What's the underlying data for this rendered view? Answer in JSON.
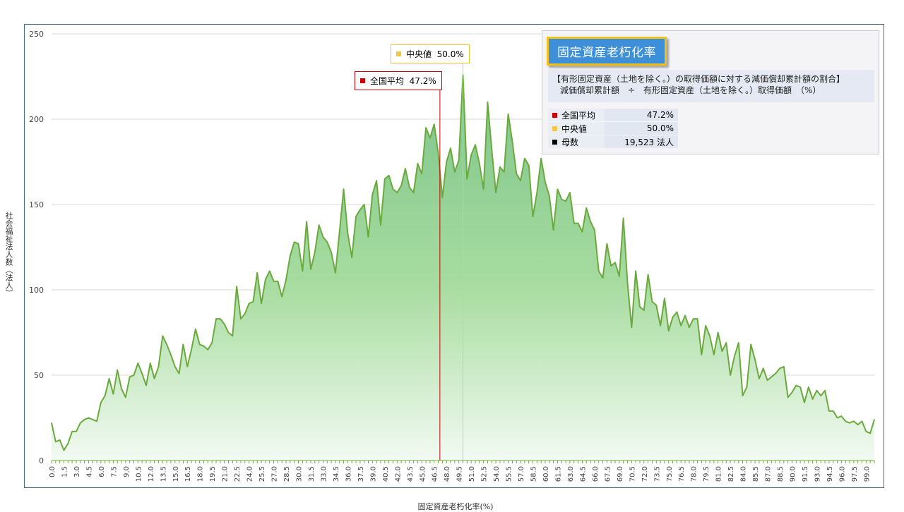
{
  "chart_data": {
    "type": "area",
    "title": "固定資産老朽化率",
    "xlabel": "固定資産老朽化率(%)",
    "ylabel": "社会福祉法人数（法人）",
    "ylim": [
      0,
      250
    ],
    "yticks": [
      0,
      50,
      100,
      150,
      200,
      250
    ],
    "xlim": [
      0,
      100
    ],
    "x_step": 0.5,
    "x_tick_labels": [
      "0.0",
      "1.5",
      "3.0",
      "4.5",
      "6.0",
      "7.5",
      "9.0",
      "10.5",
      "12.0",
      "13.5",
      "15.0",
      "16.5",
      "18.0",
      "19.5",
      "21.0",
      "22.5",
      "24.0",
      "25.5",
      "27.0",
      "28.5",
      "30.0",
      "31.5",
      "33.0",
      "34.5",
      "36.0",
      "37.5",
      "39.0",
      "40.5",
      "42.0",
      "43.5",
      "45.0",
      "46.5",
      "48.0",
      "49.5",
      "51.0",
      "52.5",
      "54.0",
      "55.5",
      "57.0",
      "58.5",
      "60.0",
      "61.5",
      "63.0",
      "64.5",
      "66.0",
      "67.5",
      "69.0",
      "70.5",
      "72.0",
      "73.5",
      "75.0",
      "76.5",
      "78.0",
      "79.5",
      "81.0",
      "82.5",
      "84.0",
      "85.5",
      "87.0",
      "88.5",
      "90.0",
      "91.5",
      "93.0",
      "94.5",
      "96.0",
      "97.5",
      "99.0"
    ],
    "grid": true,
    "series": [
      {
        "values": [
          22,
          11,
          12,
          6,
          10,
          17,
          17,
          22,
          24,
          25,
          24,
          23,
          34,
          38,
          48,
          39,
          53,
          42,
          37,
          49,
          50,
          57,
          51,
          44,
          57,
          48,
          55,
          73,
          68,
          62,
          55,
          51,
          68,
          55,
          65,
          77,
          68,
          67,
          65,
          69,
          83,
          83,
          80,
          75,
          73,
          102,
          83,
          86,
          92,
          93,
          110,
          92,
          106,
          111,
          105,
          105,
          96,
          106,
          120,
          128,
          127,
          111,
          140,
          112,
          122,
          138,
          131,
          128,
          122,
          110,
          134,
          159,
          133,
          119,
          143,
          147,
          150,
          131,
          156,
          164,
          138,
          165,
          167,
          159,
          157,
          161,
          171,
          160,
          157,
          174,
          168,
          195,
          189,
          197,
          180,
          154,
          175,
          183,
          169,
          176,
          226,
          165,
          179,
          185,
          174,
          159,
          210,
          182,
          157,
          172,
          169,
          203,
          187,
          168,
          164,
          177,
          173,
          143,
          157,
          177,
          163,
          155,
          135,
          159,
          153,
          152,
          157,
          139,
          139,
          134,
          148,
          140,
          135,
          111,
          107,
          127,
          114,
          116,
          108,
          142,
          104,
          78,
          111,
          90,
          88,
          109,
          93,
          91,
          79,
          95,
          76,
          84,
          87,
          79,
          85,
          78,
          83,
          83,
          62,
          79,
          73,
          62,
          75,
          64,
          69,
          50,
          61,
          69,
          38,
          43,
          68,
          59,
          48,
          54,
          47,
          49,
          51,
          54,
          55,
          37,
          40,
          44,
          43,
          34,
          43,
          36,
          41,
          38,
          41,
          29,
          29,
          25,
          26,
          23,
          22,
          23,
          21,
          23,
          17,
          16,
          24
        ]
      }
    ],
    "markers": [
      {
        "label": "全国平均",
        "value_text": "47.2%",
        "x": 47.2,
        "color": "#cc0000"
      },
      {
        "label": "中央値",
        "value_text": "50.0%",
        "x": 50.0,
        "color": "#f5c842"
      }
    ]
  },
  "info": {
    "title": "固定資産老朽化率",
    "desc_line1": "【有形固定資産（土地を除く。）の取得価額に対する減価償却累計額の割合】",
    "desc_line2": "減価償却累計額　÷　有形固定資産（土地を除く。）取得価額　（%）",
    "rows": [
      {
        "label": "全国平均",
        "value": "47.2%",
        "color": "#cc0000"
      },
      {
        "label": "中央値",
        "value": "50.0%",
        "color": "#f5c842"
      },
      {
        "label": "母数",
        "value": "19,523 法人",
        "color": "#000000"
      }
    ]
  },
  "colors": {
    "line": "#6aaa3c",
    "fill_top": "#7cc48a",
    "fill_bottom": "#f2faf2",
    "grid": "#d9d9d9"
  }
}
